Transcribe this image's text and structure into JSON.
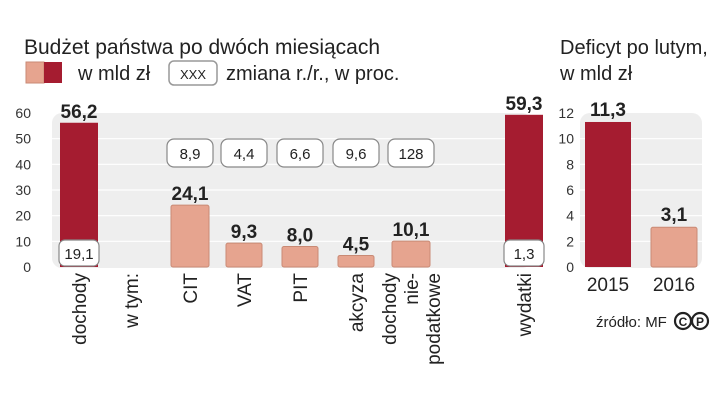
{
  "colors": {
    "dark_bar": "#a51c30",
    "light_bar": "#e6a48f",
    "light_bar_stroke": "#c98a75",
    "panel_bg": "#eeeeee",
    "text": "#222222",
    "axis_text": "#333333",
    "grid": "#ffffff"
  },
  "legend": {
    "units_label": "w mld zł",
    "change_symbol": "XXX",
    "change_label": "zmiana r./r., w proc."
  },
  "source": {
    "text": "źródło: MF"
  },
  "chart_data": [
    {
      "type": "bar",
      "title": "Budżet państwa po dwóch miesiącach",
      "ylim": [
        0,
        60
      ],
      "yticks": [
        0,
        10,
        20,
        30,
        40,
        50,
        60
      ],
      "grid": true,
      "categories": [
        {
          "label": "dochody",
          "value": 56.2,
          "value_label": "56,2",
          "change": "19,1",
          "kind": "dark"
        },
        {
          "label": "w tym:",
          "value": null,
          "value_label": "",
          "change": "",
          "kind": "none"
        },
        {
          "label": "CIT",
          "value": 24.1,
          "value_label": "24,1",
          "change": "8,9",
          "kind": "light"
        },
        {
          "label": "VAT",
          "value": 9.3,
          "value_label": "9,3",
          "change": "4,4",
          "kind": "light"
        },
        {
          "label": "PIT",
          "value": 8.0,
          "value_label": "8,0",
          "change": "6,6",
          "kind": "light"
        },
        {
          "label": "akcyza",
          "value": 4.5,
          "value_label": "4,5",
          "change": "9,6",
          "kind": "light"
        },
        {
          "label": "dochody\nnie-\npodatkowe",
          "value": 10.1,
          "value_label": "10,1",
          "change": "128",
          "kind": "light"
        },
        {
          "label": "wydatki",
          "value": 59.3,
          "value_label": "59,3",
          "change": "1,3",
          "kind": "dark"
        }
      ]
    },
    {
      "type": "bar",
      "title": "Deficyt po lutym,\nw mld zł",
      "ylim": [
        0,
        12
      ],
      "yticks": [
        0,
        2,
        4,
        6,
        8,
        10,
        12
      ],
      "grid": true,
      "categories": [
        {
          "label": "2015",
          "value": 11.3,
          "value_label": "11,3",
          "kind": "dark"
        },
        {
          "label": "2016",
          "value": 3.1,
          "value_label": "3,1",
          "kind": "light"
        }
      ]
    }
  ]
}
